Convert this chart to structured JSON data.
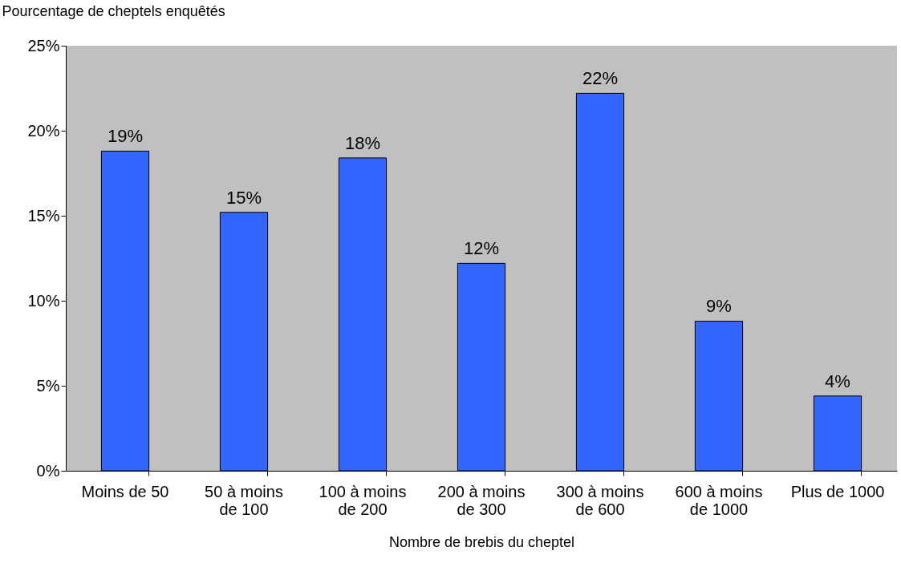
{
  "chart_data": {
    "type": "bar",
    "ylabel": "Pourcentage de cheptels enquêtés",
    "xlabel": "Nombre de brebis du cheptel",
    "categories": [
      "Moins de 50",
      "50 à moins de 100",
      "100 à moins de 200",
      "200 à moins de 300",
      "300 à moins de 600",
      "600 à moins de 1000",
      "Plus de 1000"
    ],
    "values": [
      18.8,
      15.2,
      18.4,
      12.2,
      22.2,
      8.8,
      4.4
    ],
    "value_labels": [
      "19%",
      "15%",
      "18%",
      "12%",
      "22%",
      "9%",
      "4%"
    ],
    "color": "#3366ff",
    "ylim": [
      0,
      25
    ],
    "yticks": [
      {
        "value": 0,
        "label": "0%"
      },
      {
        "value": 5,
        "label": "5%"
      },
      {
        "value": 10,
        "label": "10%"
      },
      {
        "value": 15,
        "label": "15%"
      },
      {
        "value": 20,
        "label": "20%"
      },
      {
        "value": 25,
        "label": "25%"
      }
    ]
  }
}
